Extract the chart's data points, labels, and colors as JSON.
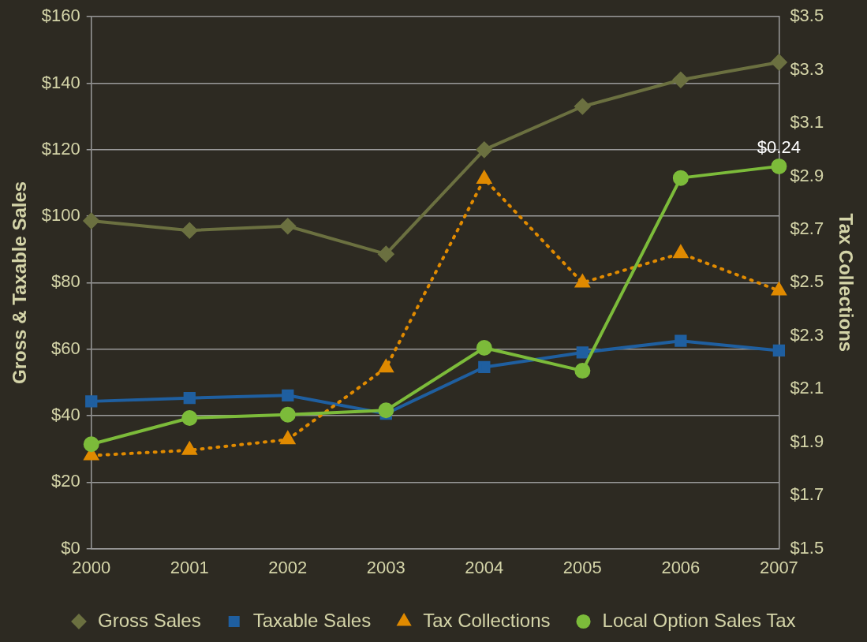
{
  "chart_data": {
    "type": "line",
    "ylabel": "Gross & Taxable Sales",
    "y2label": "Tax Collections",
    "categories": [
      "2000",
      "2001",
      "2002",
      "2003",
      "2004",
      "2005",
      "2006",
      "2007"
    ],
    "series": [
      {
        "name": "Gross Sales",
        "color": "#6b7040",
        "marker": "diamond",
        "line_style": "solid",
        "values": [
          98.6,
          95.7,
          97,
          88.6,
          120,
          133,
          141,
          146.3
        ]
      },
      {
        "name": "Taxable Sales",
        "color": "#1f5fa0",
        "marker": "square",
        "line_style": "solid",
        "values": [
          44.3,
          45.3,
          46.1,
          40.6,
          54.6,
          59,
          62.5,
          59.6
        ]
      },
      {
        "name": "Tax Collections",
        "color": "#e08a00",
        "marker": "triangle",
        "line_style": "dotted",
        "axis": "y2",
        "values": [
          1.85,
          1.87,
          1.91,
          2.18,
          2.89,
          2.5,
          2.61,
          2.47
        ]
      },
      {
        "name": "Local Option Sales Tax",
        "color": "#7cbb3a",
        "marker": "circle",
        "line_style": "solid",
        "values": [
          31.4,
          39.3,
          40.3,
          41.6,
          60.4,
          53.5,
          111.5,
          115
        ]
      }
    ],
    "ylim": [
      0,
      160
    ],
    "yticks": [
      {
        "value": 0,
        "label": "$0"
      },
      {
        "value": 20,
        "label": "$20"
      },
      {
        "value": 40,
        "label": "$40"
      },
      {
        "value": 60,
        "label": "$60"
      },
      {
        "value": 80,
        "label": "$80"
      },
      {
        "value": 100,
        "label": "$100"
      },
      {
        "value": 120,
        "label": "$120"
      },
      {
        "value": 140,
        "label": "$140"
      },
      {
        "value": 160,
        "label": "$160"
      }
    ],
    "y2lim": [
      1.5,
      3.5
    ],
    "y2ticks": [
      {
        "value": 1.5,
        "label": "$1.5"
      },
      {
        "value": 1.7,
        "label": "$1.7"
      },
      {
        "value": 1.9,
        "label": "$1.9"
      },
      {
        "value": 2.1,
        "label": "$2.1"
      },
      {
        "value": 2.3,
        "label": "$2.3"
      },
      {
        "value": 2.5,
        "label": "$2.5"
      },
      {
        "value": 2.7,
        "label": "$2.7"
      },
      {
        "value": 2.9,
        "label": "$2.9"
      },
      {
        "value": 3.1,
        "label": "$3.1"
      },
      {
        "value": 3.3,
        "label": "$3.3"
      },
      {
        "value": 3.5,
        "label": "$3.5"
      }
    ],
    "annotations": [
      {
        "text": "$0.24",
        "x": "2007",
        "y": 115
      }
    ],
    "grid": "y",
    "legend": "bottom"
  }
}
